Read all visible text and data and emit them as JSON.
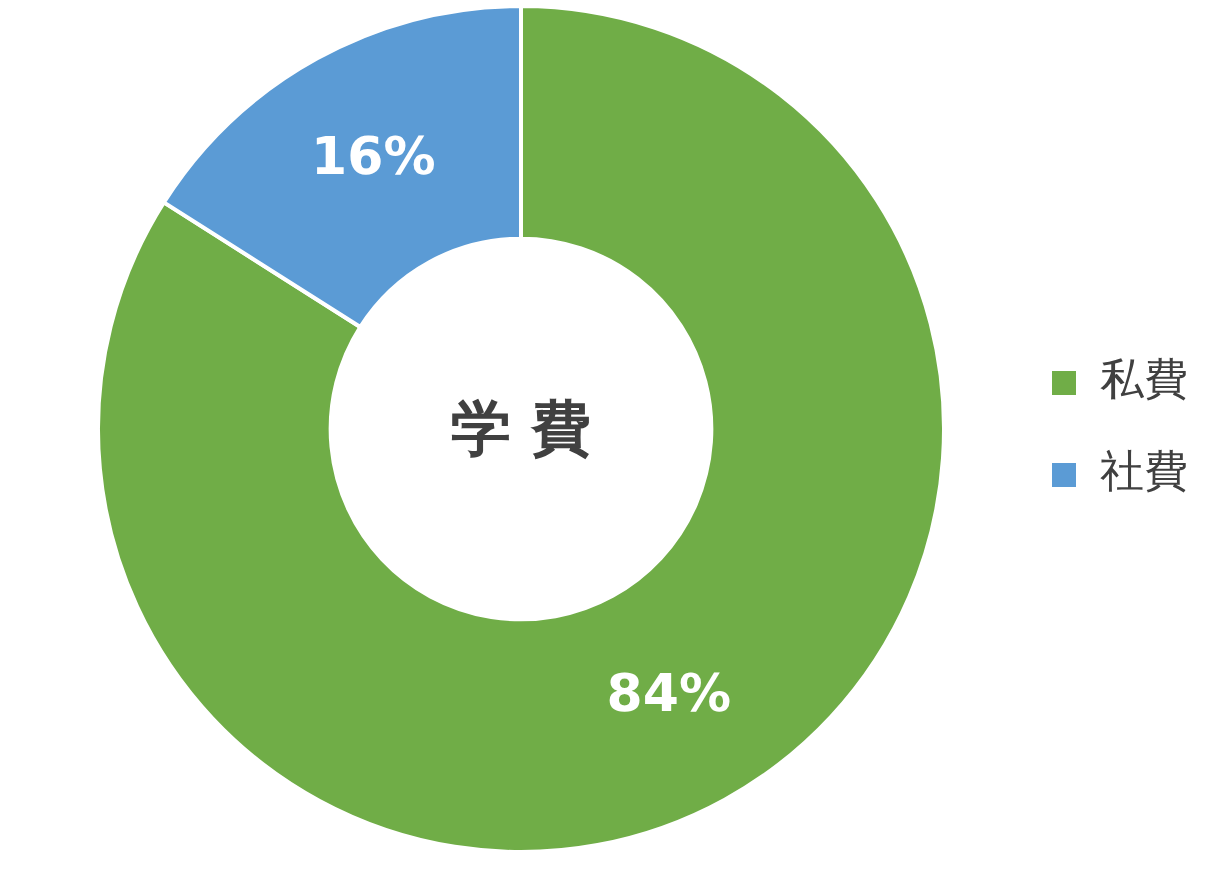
{
  "chart_data": {
    "type": "donut",
    "title": "学 費",
    "categories": [
      "私費",
      "社費"
    ],
    "values": [
      84,
      16
    ],
    "value_labels": [
      "84%",
      "16%"
    ],
    "colors": [
      "#70ad47",
      "#5b9bd5"
    ],
    "legend": "right"
  }
}
